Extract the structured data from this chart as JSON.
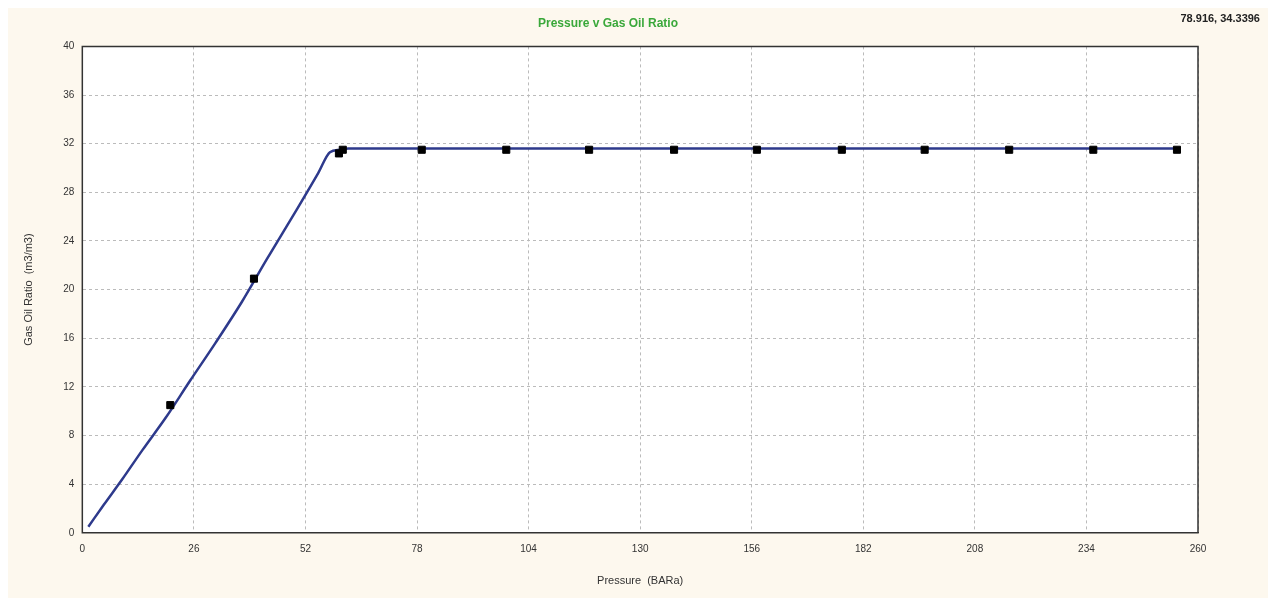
{
  "chart_data": {
    "type": "scatter",
    "title": "Pressure v Gas Oil Ratio",
    "xlabel": "Pressure  (BARa)",
    "ylabel": "Gas Oil Ratio  (m3/m3)",
    "annotations": [
      "78.916, 34.3396"
    ],
    "series": [
      {
        "type": "line",
        "color": "#2e3a8c",
        "marker": "none",
        "x": [
          1.4,
          5,
          9.3,
          14,
          19.5,
          25.1,
          31,
          37.2,
          43,
          50,
          55,
          57.7,
          60,
          62,
          65,
          80,
          120,
          160,
          200,
          240,
          255
        ],
        "values": [
          0.5,
          2.3,
          4.4,
          6.8,
          9.5,
          12.5,
          15.6,
          19.0,
          22.5,
          26.6,
          29.6,
          31.3,
          31.5,
          31.6,
          31.6,
          31.6,
          31.6,
          31.6,
          31.6,
          31.6,
          31.6
        ]
      },
      {
        "color": "#000000",
        "marker": "square",
        "x": [
          20.5,
          40,
          59.8,
          60.7,
          79.1,
          98.8,
          118.1,
          137.9,
          157.2,
          177,
          196.3,
          216,
          235.6,
          255.1
        ],
        "values": [
          10.5,
          20.9,
          31.2,
          31.5,
          31.5,
          31.5,
          31.5,
          31.5,
          31.5,
          31.5,
          31.5,
          31.5,
          31.5,
          31.5
        ]
      }
    ],
    "xlim": [
      0,
      260
    ],
    "xticks": [
      0,
      26,
      52,
      78,
      104,
      130,
      156,
      182,
      208,
      234,
      260
    ],
    "ylim": [
      0,
      40
    ],
    "yticks": [
      0,
      4,
      8,
      12,
      16,
      20,
      24,
      28,
      32,
      36,
      40
    ],
    "grid": true,
    "legend": false
  }
}
